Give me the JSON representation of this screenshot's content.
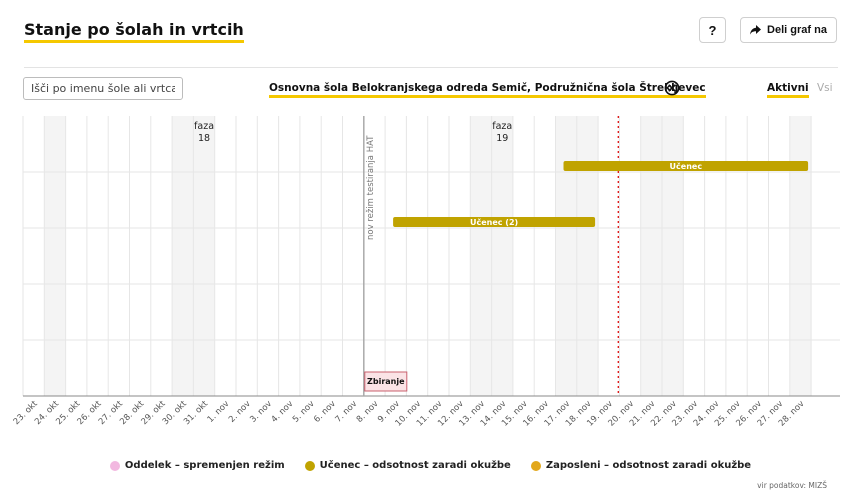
{
  "header": {
    "title": "Stanje po šolah in vrtcih",
    "help_label": "?",
    "share_label": "Deli graf na"
  },
  "search": {
    "placeholder": "Išči po imenu šole ali vrtca"
  },
  "selected_school": "Osnovna šola Belokranjskega odreda Semič, Podružnična šola Štrekljevec",
  "filters": [
    {
      "label": "Aktivni",
      "active": true
    },
    {
      "label": "Vsi",
      "active": false
    }
  ],
  "chart_data": {
    "type": "timeline",
    "categories": [
      "23. okt",
      "24. okt",
      "25. okt",
      "26. okt",
      "27. okt",
      "28. okt",
      "29. okt",
      "30. okt",
      "31. okt",
      "1. nov",
      "2. nov",
      "3. nov",
      "4. nov",
      "5. nov",
      "6. nov",
      "7. nov",
      "8. nov",
      "9. nov",
      "10. nov",
      "11. nov",
      "12. nov",
      "13. nov",
      "14. nov",
      "15. nov",
      "16. nov",
      "17. nov",
      "18. nov",
      "19. nov",
      "20. nov",
      "21. nov",
      "22. nov",
      "23. nov",
      "24. nov",
      "25. nov",
      "26. nov",
      "27. nov",
      "28. nov"
    ],
    "shaded_days": [
      "24. okt",
      "30. okt",
      "31. okt",
      "13. nov",
      "14. nov",
      "17. nov",
      "18. nov",
      "21. nov",
      "22. nov",
      "28. nov"
    ],
    "phases": [
      {
        "label": "faza",
        "number": "18",
        "day": "31. okt"
      },
      {
        "label": "faza",
        "number": "19",
        "day": "14. nov"
      }
    ],
    "annotation": {
      "day": "8. nov",
      "text": "nov režim testiranja HAT"
    },
    "today_marker": "20. nov",
    "bars": [
      {
        "label": "Učenec",
        "start": "17. nov",
        "end": "28. nov",
        "row": 1,
        "color": "#c0a300"
      },
      {
        "label": "Učenec (2)",
        "start": "9. nov",
        "end": "18. nov",
        "row": 2,
        "color": "#c0a300"
      }
    ],
    "events": [
      {
        "label": "Zbiranje",
        "day": "8. nov"
      }
    ],
    "rows": 5
  },
  "legend": [
    {
      "label": "Oddelek – spremenjen režim",
      "color": "#f2b8e0"
    },
    {
      "label": "Učenec – odsotnost zaradi okužbe",
      "color": "#c0a300"
    },
    {
      "label": "Zaposleni – odsotnost zaradi okužbe",
      "color": "#e2a71a"
    }
  ],
  "source": "vir podatkov: MIZŠ"
}
